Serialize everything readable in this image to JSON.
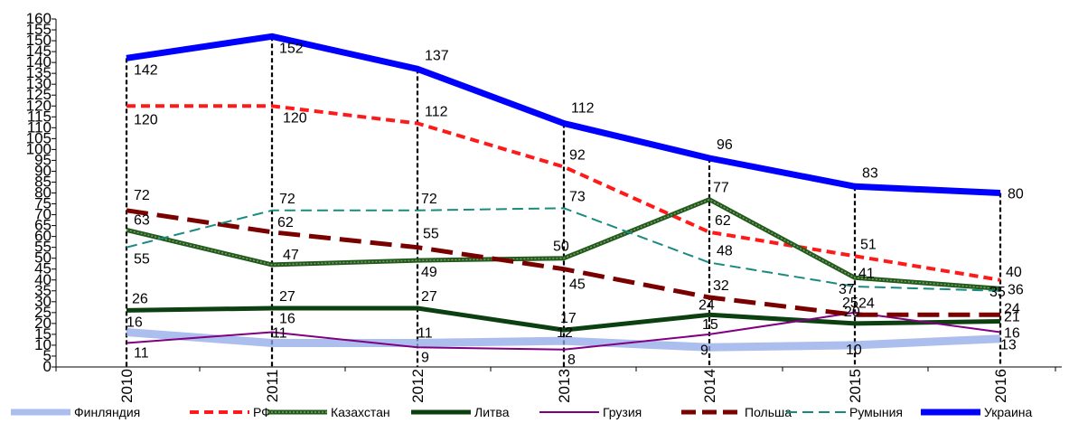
{
  "chart_data": {
    "type": "line",
    "title": "",
    "xlabel": "",
    "ylabel": "",
    "categories": [
      "2010",
      "2011",
      "2012",
      "2013",
      "2014",
      "2015",
      "2016"
    ],
    "ylim": [
      0,
      160
    ],
    "y_ticks": [
      "0",
      "5",
      "10",
      "15",
      "20",
      "25",
      "30",
      "35",
      "40",
      "45",
      "50",
      "55",
      "60",
      "65",
      "70",
      "75",
      "80",
      "85",
      "90",
      "95",
      "100",
      "105",
      "110",
      "115",
      "120",
      "125",
      "130",
      "135",
      "140",
      "145",
      "150",
      "155",
      "160"
    ],
    "grid": false,
    "legend_position": "bottom",
    "series": [
      {
        "name": "Финляндия",
        "values": [
          16,
          11,
          11,
          12,
          9,
          10,
          13
        ],
        "color": "#8fa8e8"
      },
      {
        "name": "РФ",
        "values": [
          120,
          120,
          112,
          92,
          62,
          51,
          40
        ],
        "color": "#ff1a1a"
      },
      {
        "name": "Казахстан",
        "values": [
          63,
          47,
          49,
          50,
          77,
          41,
          36
        ],
        "color": "#1f5a1f"
      },
      {
        "name": "Литва",
        "values": [
          26,
          27,
          27,
          17,
          24,
          20,
          21
        ],
        "color": "#0d4010"
      },
      {
        "name": "Грузия",
        "values": [
          11,
          16,
          9,
          8,
          15,
          25,
          16
        ],
        "color": "#800080"
      },
      {
        "name": "Польша",
        "values": [
          72,
          62,
          55,
          45,
          32,
          24,
          24
        ],
        "color": "#7a0000"
      },
      {
        "name": "Румыния",
        "values": [
          55,
          72,
          72,
          73,
          48,
          37,
          35
        ],
        "color": "#1a8a80"
      },
      {
        "name": "Украина",
        "values": [
          142,
          152,
          137,
          112,
          96,
          83,
          80
        ],
        "color": "#0000ff"
      }
    ]
  }
}
